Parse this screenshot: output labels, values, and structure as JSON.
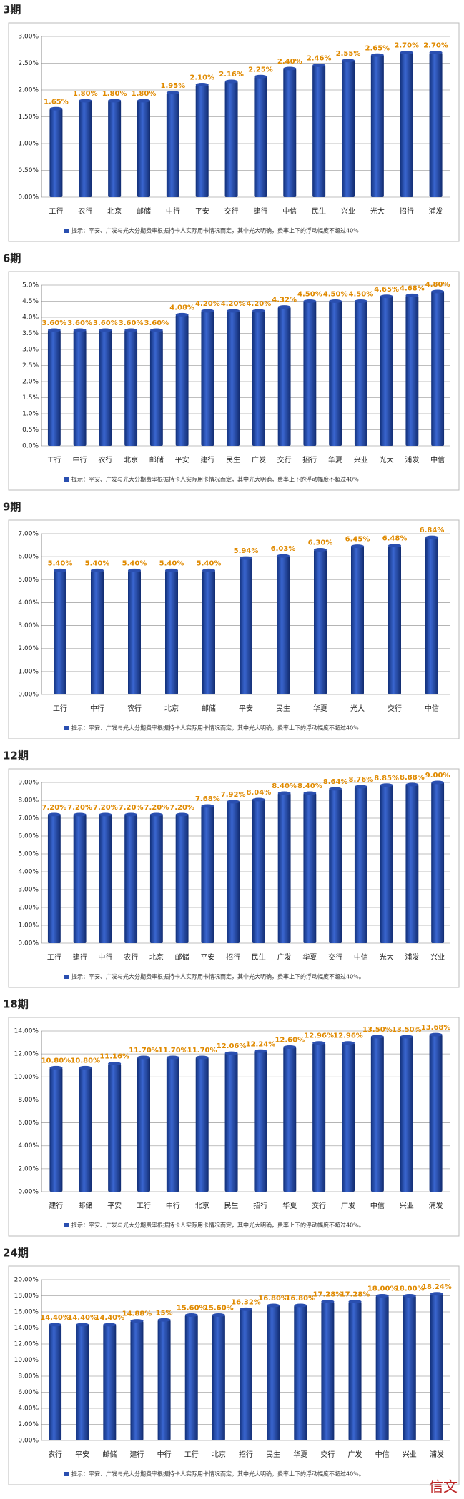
{
  "chart_data": [
    {
      "type": "bar",
      "title": "3期",
      "color": "#2a4fb0",
      "grid": true,
      "categories": [
        "工行",
        "农行",
        "北京",
        "邮储",
        "中行",
        "平安",
        "交行",
        "建行",
        "中信",
        "民生",
        "兴业",
        "光大",
        "招行",
        "浦发"
      ],
      "values": [
        1.65,
        1.8,
        1.8,
        1.8,
        1.95,
        2.1,
        2.16,
        2.25,
        2.4,
        2.46,
        2.55,
        2.65,
        2.7,
        2.7
      ],
      "value_labels": [
        "1.65%",
        "1.80%",
        "1.80%",
        "1.80%",
        "1.95%",
        "2.10%",
        "2.16%",
        "2.25%",
        "2.40%",
        "2.46%",
        "2.55%",
        "2.65%",
        "2.70%",
        "2.70%"
      ],
      "ylim": [
        0,
        3
      ],
      "yticks": [
        {
          "value": 0,
          "label": "0.00%"
        },
        {
          "value": 0.5,
          "label": "0.50%"
        },
        {
          "value": 1,
          "label": "1.00%"
        },
        {
          "value": 1.5,
          "label": "1.50%"
        },
        {
          "value": 2,
          "label": "2.00%"
        },
        {
          "value": 2.5,
          "label": "2.50%"
        },
        {
          "value": 3,
          "label": "3.00%"
        }
      ],
      "note": "提示：平安、广发与光大分期费率根据持卡人实际用卡情况而定，其中光大明确，费率上下的浮动幅度不超过40%"
    },
    {
      "type": "bar",
      "title": "6期",
      "color": "#2a4fb0",
      "grid": true,
      "categories": [
        "工行",
        "中行",
        "农行",
        "北京",
        "邮储",
        "平安",
        "建行",
        "民生",
        "广发",
        "交行",
        "招行",
        "华夏",
        "兴业",
        "光大",
        "浦发",
        "中信"
      ],
      "values": [
        3.6,
        3.6,
        3.6,
        3.6,
        3.6,
        4.08,
        4.2,
        4.2,
        4.2,
        4.32,
        4.5,
        4.5,
        4.5,
        4.65,
        4.68,
        4.8
      ],
      "value_labels": [
        "3.60%",
        "3.60%",
        "3.60%",
        "3.60%",
        "3.60%",
        "4.08%",
        "4.20%",
        "4.20%",
        "4.20%",
        "4.32%",
        "4.50%",
        "4.50%",
        "4.50%",
        "4.65%",
        "4.68%",
        "4.80%"
      ],
      "ylim": [
        0,
        5
      ],
      "yticks": [
        {
          "value": 0,
          "label": "0.0%"
        },
        {
          "value": 0.5,
          "label": "0.5%"
        },
        {
          "value": 1,
          "label": "1.0%"
        },
        {
          "value": 1.5,
          "label": "1.5%"
        },
        {
          "value": 2,
          "label": "2.0%"
        },
        {
          "value": 2.5,
          "label": "2.5%"
        },
        {
          "value": 3,
          "label": "3.0%"
        },
        {
          "value": 3.5,
          "label": "3.5%"
        },
        {
          "value": 4,
          "label": "4.0%"
        },
        {
          "value": 4.5,
          "label": "4.5%"
        },
        {
          "value": 5,
          "label": "5.0%"
        }
      ],
      "note": "提示：平安、广发与光大分期费率根据持卡人实际用卡情况而定，其中光大明确，费率上下的浮动幅度不超过40%"
    },
    {
      "type": "bar",
      "title": "9期",
      "color": "#2a4fb0",
      "grid": true,
      "categories": [
        "工行",
        "中行",
        "农行",
        "北京",
        "邮储",
        "平安",
        "民生",
        "华夏",
        "光大",
        "交行",
        "中信"
      ],
      "values": [
        5.4,
        5.4,
        5.4,
        5.4,
        5.4,
        5.94,
        6.03,
        6.3,
        6.45,
        6.48,
        6.84
      ],
      "value_labels": [
        "5.40%",
        "5.40%",
        "5.40%",
        "5.40%",
        "5.40%",
        "5.94%",
        "6.03%",
        "6.30%",
        "6.45%",
        "6.48%",
        "6.84%"
      ],
      "ylim": [
        0,
        7
      ],
      "yticks": [
        {
          "value": 0,
          "label": "0.00%"
        },
        {
          "value": 1,
          "label": "1.00%"
        },
        {
          "value": 2,
          "label": "2.00%"
        },
        {
          "value": 3,
          "label": "3.00%"
        },
        {
          "value": 4,
          "label": "4.00%"
        },
        {
          "value": 5,
          "label": "5.00%"
        },
        {
          "value": 6,
          "label": "6.00%"
        },
        {
          "value": 7,
          "label": "7.00%"
        }
      ],
      "note": "提示：平安、广发与光大分期费率根据持卡人实际用卡情况而定，其中光大明确，费率上下的浮动幅度不超过40%"
    },
    {
      "type": "bar",
      "title": "12期",
      "color": "#2a4fb0",
      "grid": true,
      "categories": [
        "工行",
        "建行",
        "中行",
        "农行",
        "北京",
        "邮储",
        "平安",
        "招行",
        "民生",
        "广发",
        "华夏",
        "交行",
        "中信",
        "光大",
        "浦发",
        "兴业"
      ],
      "values": [
        7.2,
        7.2,
        7.2,
        7.2,
        7.2,
        7.2,
        7.68,
        7.92,
        8.04,
        8.4,
        8.4,
        8.64,
        8.76,
        8.85,
        8.88,
        9.0
      ],
      "value_labels": [
        "7.20%",
        "7.20%",
        "7.20%",
        "7.20%",
        "7.20%",
        "7.20%",
        "7.68%",
        "7.92%",
        "8.04%",
        "8.40%",
        "8.40%",
        "8.64%",
        "8.76%",
        "8.85%",
        "8.88%",
        "9.00%"
      ],
      "ylim": [
        0,
        9
      ],
      "yticks": [
        {
          "value": 0,
          "label": "0.00%"
        },
        {
          "value": 1,
          "label": "1.00%"
        },
        {
          "value": 2,
          "label": "2.00%"
        },
        {
          "value": 3,
          "label": "3.00%"
        },
        {
          "value": 4,
          "label": "4.00%"
        },
        {
          "value": 5,
          "label": "5.00%"
        },
        {
          "value": 6,
          "label": "6.00%"
        },
        {
          "value": 7,
          "label": "7.00%"
        },
        {
          "value": 8,
          "label": "8.00%"
        },
        {
          "value": 9,
          "label": "9.00%"
        }
      ],
      "note": "提示：平安、广发与光大分期费率根据持卡人实际用卡情况而定，其中光大明确，费率上下的浮动幅度不超过40%。"
    },
    {
      "type": "bar",
      "title": "18期",
      "color": "#2a4fb0",
      "grid": true,
      "categories": [
        "建行",
        "邮储",
        "平安",
        "工行",
        "中行",
        "北京",
        "民生",
        "招行",
        "华夏",
        "交行",
        "广发",
        "中信",
        "兴业",
        "浦发"
      ],
      "values": [
        10.8,
        10.8,
        11.16,
        11.7,
        11.7,
        11.7,
        12.06,
        12.24,
        12.6,
        12.96,
        12.96,
        13.5,
        13.5,
        13.68
      ],
      "value_labels": [
        "10.80%",
        "10.80%",
        "11.16%",
        "11.70%",
        "11.70%",
        "11.70%",
        "12.06%",
        "12.24%",
        "12.60%",
        "12.96%",
        "12.96%",
        "13.50%",
        "13.50%",
        "13.68%"
      ],
      "ylim": [
        0,
        14
      ],
      "yticks": [
        {
          "value": 0,
          "label": "0.00%"
        },
        {
          "value": 2,
          "label": "2.00%"
        },
        {
          "value": 4,
          "label": "4.00%"
        },
        {
          "value": 6,
          "label": "6.00%"
        },
        {
          "value": 8,
          "label": "8.00%"
        },
        {
          "value": 10,
          "label": "10.00%"
        },
        {
          "value": 12,
          "label": "12.00%"
        },
        {
          "value": 14,
          "label": "14.00%"
        }
      ],
      "note": "提示：平安、广发与光大分期费率根据持卡人实际用卡情况而定，其中光大明确，费率上下的浮动幅度不超过40%。"
    },
    {
      "type": "bar",
      "title": "24期",
      "color": "#2a4fb0",
      "grid": true,
      "categories": [
        "农行",
        "平安",
        "邮储",
        "建行",
        "中行",
        "工行",
        "北京",
        "招行",
        "民生",
        "华夏",
        "交行",
        "广发",
        "中信",
        "兴业",
        "浦发"
      ],
      "values": [
        14.4,
        14.4,
        14.4,
        14.88,
        15,
        15.6,
        15.6,
        16.32,
        16.8,
        16.8,
        17.28,
        17.28,
        18.0,
        18.0,
        18.24
      ],
      "value_labels": [
        "14.40%",
        "14.40%",
        "14.40%",
        "14.88%",
        "15%",
        "15.60%",
        "15.60%",
        "16.32%",
        "16.80%",
        "16.80%",
        "17.28%",
        "17.28%",
        "18.00%",
        "18.00%",
        "18.24%"
      ],
      "ylim": [
        0,
        20
      ],
      "yticks": [
        {
          "value": 0,
          "label": "0.00%"
        },
        {
          "value": 2,
          "label": "2.00%"
        },
        {
          "value": 4,
          "label": "4.00%"
        },
        {
          "value": 6,
          "label": "6.00%"
        },
        {
          "value": 8,
          "label": "8.00%"
        },
        {
          "value": 10,
          "label": "10.00%"
        },
        {
          "value": 12,
          "label": "12.00%"
        },
        {
          "value": 14,
          "label": "14.00%"
        },
        {
          "value": 16,
          "label": "16.00%"
        },
        {
          "value": 18,
          "label": "18.00%"
        },
        {
          "value": 20,
          "label": "20.00%"
        }
      ],
      "note": "提示：平安、广发与光大分期费率根据持卡人实际用卡情况而定，其中光大明确，费率上下的浮动幅度不超过40%。"
    }
  ],
  "watermark": "信文"
}
